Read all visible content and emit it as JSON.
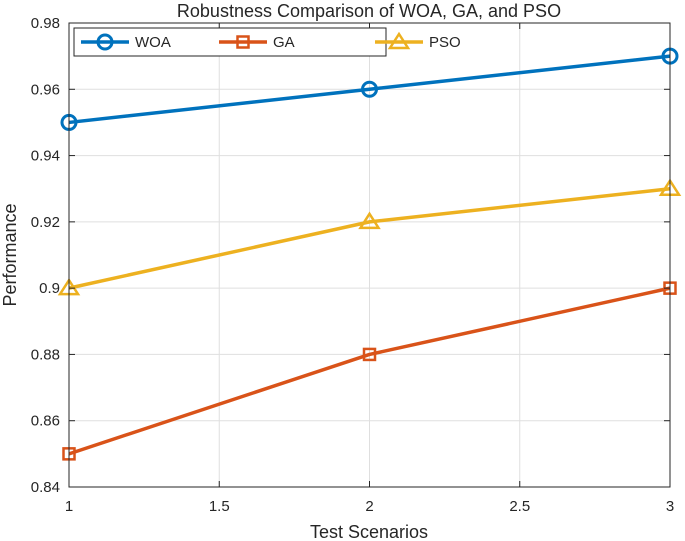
{
  "chart_data": {
    "type": "line",
    "title": "Robustness Comparison of WOA, GA, and PSO",
    "xlabel": "Test Scenarios",
    "ylabel": "Performance",
    "x": [
      1,
      2,
      3
    ],
    "xlim": [
      1,
      3
    ],
    "ylim": [
      0.84,
      0.98
    ],
    "xticks": [
      1,
      1.5,
      2,
      2.5,
      3
    ],
    "xtick_labels": [
      "1",
      "1.5",
      "2",
      "2.5",
      "3"
    ],
    "yticks": [
      0.84,
      0.86,
      0.88,
      0.9,
      0.92,
      0.94,
      0.96,
      0.98
    ],
    "ytick_labels": [
      "0.84",
      "0.86",
      "0.88",
      "0.9",
      "0.92",
      "0.94",
      "0.96",
      "0.98"
    ],
    "grid": true,
    "legend_position": "top-left",
    "series": [
      {
        "name": "WOA",
        "values": [
          0.95,
          0.96,
          0.97
        ],
        "color": "#0072BD",
        "marker": "circle"
      },
      {
        "name": "GA",
        "values": [
          0.85,
          0.88,
          0.9
        ],
        "color": "#D95319",
        "marker": "square"
      },
      {
        "name": "PSO",
        "values": [
          0.9,
          0.92,
          0.93
        ],
        "color": "#EDB120",
        "marker": "triangle"
      }
    ]
  }
}
